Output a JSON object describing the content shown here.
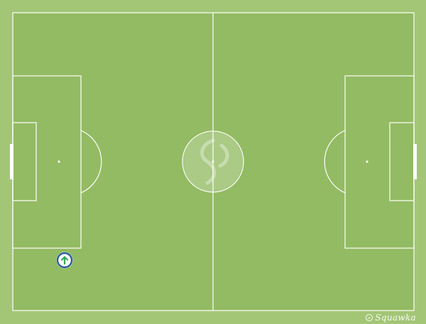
{
  "pitch": {
    "grass_color": "#93bb63",
    "border_color": "#a3c676",
    "line_color": "#ffffff",
    "center_logo": "squawka-swirl-icon"
  },
  "marker": {
    "icon": "up-arrow-icon",
    "ring_color": "#2a5f9e",
    "fill_color": "#ffffff",
    "arrow_color": "#33a852"
  },
  "branding": {
    "label": "Squawka",
    "icon": "squawka-logo-icon"
  }
}
